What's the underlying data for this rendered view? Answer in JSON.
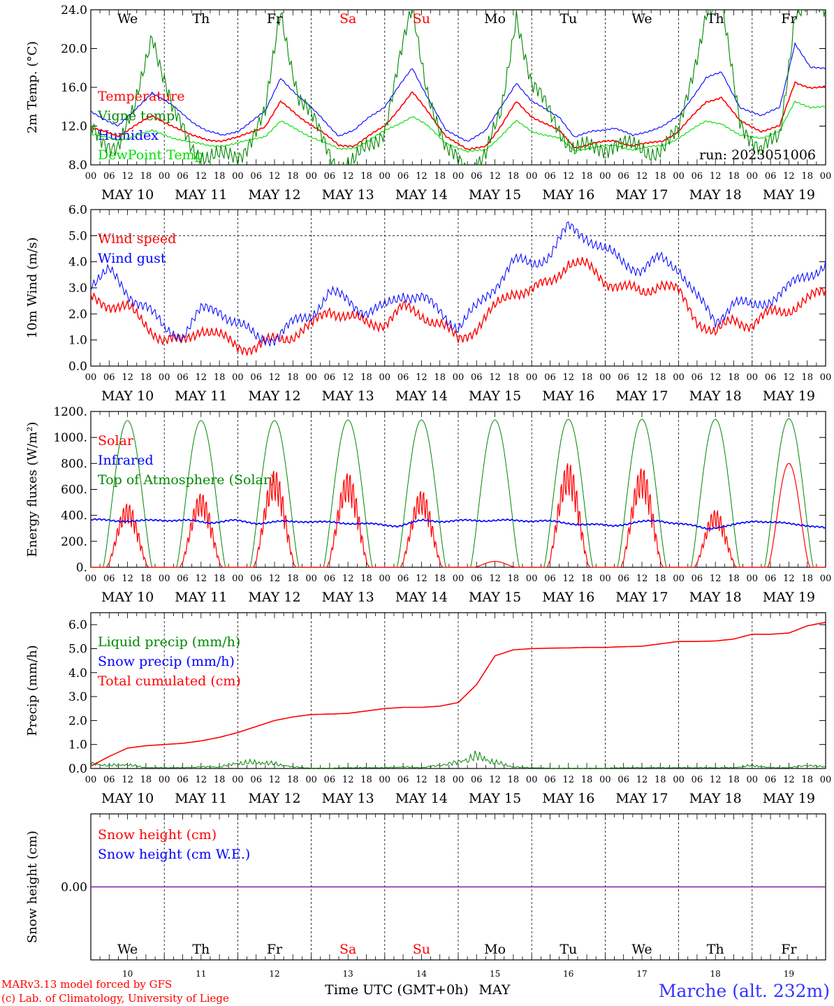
{
  "chart_data": [
    {
      "type": "line",
      "ylabel": "2m Temp. (°C)",
      "ylim": [
        8,
        24
      ],
      "yticks": [
        "8.0",
        "12.0",
        "16.0",
        "20.0",
        "24.0"
      ],
      "ytick_values": [
        8,
        12,
        16,
        20,
        24
      ],
      "legend": [
        "Temperature",
        "Vigne temp",
        "Humidex",
        "DewPoint Temp"
      ],
      "annotation": "run: 2023051006",
      "x": [
        0,
        9,
        14,
        20,
        27,
        33,
        38,
        43,
        48,
        57,
        62,
        68,
        75,
        81,
        86,
        91,
        96,
        105,
        110,
        116,
        123,
        129,
        134,
        139,
        144,
        153,
        158,
        164,
        171,
        177,
        182,
        187,
        192,
        201,
        206,
        212,
        219,
        225,
        230,
        235
      ],
      "series": [
        {
          "name": "Temperature",
          "color": "#ff0000",
          "values": [
            11.8,
            11.0,
            12.0,
            13.0,
            12.0,
            11.0,
            10.6,
            10.5,
            10.8,
            12.0,
            14.5,
            13.0,
            11.5,
            10.0,
            10.0,
            11.0,
            12.0,
            15.5,
            13.5,
            11.0,
            9.5,
            10.0,
            12.0,
            14.5,
            13.0,
            11.5,
            9.8,
            10.2,
            10.5,
            10.0,
            10.2,
            10.5,
            11.5,
            14.5,
            15.0,
            12.5,
            11.5,
            12.0,
            16.5,
            16.0
          ]
        },
        {
          "name": "Humidex",
          "color": "#0000ff",
          "values": [
            13.5,
            12.0,
            13.5,
            15.5,
            14.0,
            12.5,
            11.5,
            11.0,
            11.5,
            13.5,
            17.0,
            15.0,
            13.0,
            11.0,
            11.5,
            13.0,
            14.0,
            18.0,
            15.0,
            11.5,
            10.5,
            11.5,
            14.0,
            16.5,
            14.5,
            13.0,
            10.8,
            11.5,
            11.8,
            11.0,
            11.5,
            12.0,
            13.0,
            17.0,
            17.5,
            14.0,
            13.0,
            14.0,
            20.5,
            18.0
          ]
        },
        {
          "name": "DewPoint Temp",
          "color": "#00dd00",
          "values": [
            11.2,
            10.5,
            11.0,
            11.5,
            10.8,
            10.3,
            10.0,
            10.0,
            10.2,
            11.0,
            12.5,
            11.5,
            10.5,
            9.6,
            9.8,
            10.5,
            11.5,
            13.0,
            12.0,
            10.3,
            9.3,
            9.6,
            11.0,
            12.5,
            11.5,
            10.7,
            9.5,
            9.8,
            10.0,
            9.6,
            9.8,
            10.0,
            10.8,
            12.5,
            12.3,
            11.0,
            10.8,
            11.5,
            14.5,
            14.0
          ]
        },
        {
          "name": "Vigne temp",
          "color": "#008800",
          "values": [
            11.5,
            10.0,
            13.0,
            22.0,
            13.0,
            10.0,
            9.0,
            8.5,
            9.0,
            13.0,
            24.0,
            15.0,
            11.0,
            8.0,
            8.0,
            10.0,
            12.0,
            24.0,
            16.0,
            9.0,
            8.0,
            9.0,
            13.0,
            24.0,
            16.0,
            12.0,
            9.5,
            9.5,
            10.5,
            9.5,
            9.5,
            10.0,
            11.0,
            24.0,
            24.0,
            13.0,
            9.0,
            11.0,
            24.0,
            24.0
          ]
        }
      ]
    },
    {
      "type": "line",
      "ylabel": "10m Wind (m/s)",
      "ylim": [
        0,
        6
      ],
      "yticks": [
        "0.0",
        "1.0",
        "2.0",
        "3.0",
        "4.0",
        "5.0",
        "6.0"
      ],
      "ytick_values": [
        0,
        1,
        2,
        3,
        4,
        5,
        6
      ],
      "legend": [
        "Wind speed",
        "Wind gust"
      ],
      "x": [
        0,
        6,
        12,
        18,
        24,
        30,
        36,
        42,
        48,
        54,
        60,
        66,
        72,
        78,
        84,
        90,
        96,
        102,
        108,
        114,
        120,
        126,
        132,
        138,
        144,
        150,
        156,
        162,
        168,
        174,
        180,
        186,
        192,
        198,
        204,
        210,
        216,
        222,
        228,
        234,
        240
      ],
      "series": [
        {
          "name": "Wind speed",
          "color": "#ff0000",
          "values": [
            2.6,
            2.4,
            2.2,
            1.6,
            1.0,
            0.9,
            1.5,
            1.1,
            0.8,
            0.7,
            1.0,
            1.2,
            1.5,
            2.2,
            1.9,
            1.6,
            1.7,
            2.2,
            2.0,
            1.6,
            1.0,
            1.5,
            2.2,
            2.9,
            2.9,
            3.2,
            4.0,
            3.8,
            3.3,
            3.0,
            2.8,
            3.2,
            2.8,
            1.8,
            1.2,
            1.8,
            1.6,
            2.0,
            2.2,
            2.5,
            2.9
          ]
        },
        {
          "name": "Wind gust",
          "color": "#0000ff",
          "values": [
            3.2,
            3.6,
            2.8,
            2.3,
            1.4,
            1.2,
            2.1,
            2.2,
            1.6,
            1.1,
            1.1,
            1.6,
            2.0,
            2.8,
            2.5,
            2.1,
            2.2,
            2.8,
            2.6,
            2.1,
            1.5,
            2.2,
            3.1,
            4.0,
            3.9,
            4.3,
            5.3,
            5.0,
            4.4,
            4.0,
            3.7,
            4.1,
            3.8,
            2.6,
            1.7,
            2.5,
            2.2,
            2.6,
            3.0,
            3.5,
            3.9
          ]
        }
      ]
    },
    {
      "type": "line",
      "ylabel": "Energy fluxes (W/m²)",
      "ylim": [
        0,
        1200
      ],
      "yticks": [
        "0.",
        "200.",
        "400.",
        "600.",
        "800.",
        "1000.",
        "1200."
      ],
      "ytick_values": [
        0,
        200,
        400,
        600,
        800,
        1000,
        1200
      ],
      "legend": [
        "Solar",
        "Infrared",
        "Top of Atmosphere (Solar)"
      ],
      "solar_peaks": [
        500,
        580,
        760,
        740,
        600,
        45,
        820,
        780,
        450,
        800
      ],
      "series": [
        {
          "name": "Top of Atmosphere (Solar)",
          "color": "#008800",
          "values_daily_peak": [
            1130,
            1130,
            1130,
            1135,
            1135,
            1135,
            1140,
            1140,
            1140,
            1145
          ]
        },
        {
          "name": "Solar",
          "color": "#ff0000",
          "values_daily_peak": [
            500,
            580,
            760,
            740,
            600,
            45,
            820,
            780,
            450,
            800
          ]
        },
        {
          "name": "Infrared",
          "color": "#0000ff",
          "values": [
            365,
            360,
            355,
            365,
            360,
            345,
            360,
            340,
            350,
            355,
            345,
            340,
            330,
            320,
            360,
            355,
            360,
            362,
            358,
            360,
            340,
            330,
            320,
            345,
            360,
            330,
            300,
            320,
            360,
            340,
            330,
            300
          ]
        }
      ]
    },
    {
      "type": "line",
      "ylabel": "Precip (mm/h)",
      "ylim": [
        0,
        6.5
      ],
      "yticks": [
        "0.0",
        "1.0",
        "2.0",
        "3.0",
        "4.0",
        "5.0",
        "6.0"
      ],
      "ytick_values": [
        0,
        1,
        2,
        3,
        4,
        5,
        6
      ],
      "legend": [
        "Liquid precip (mm/h)",
        "Snow precip (mm/h)",
        "Total cumulated (cm)"
      ],
      "x": [
        0,
        6,
        12,
        18,
        24,
        30,
        36,
        42,
        48,
        54,
        60,
        66,
        72,
        78,
        84,
        90,
        96,
        102,
        108,
        114,
        120,
        126,
        132,
        138,
        144,
        150,
        156,
        162,
        168,
        174,
        180,
        186,
        192,
        198,
        204,
        210,
        216,
        222,
        228,
        234,
        240
      ],
      "series": [
        {
          "name": "Total cumulated (cm)",
          "color": "#ff0000",
          "values": [
            0.1,
            0.5,
            0.85,
            0.95,
            1.0,
            1.05,
            1.15,
            1.3,
            1.5,
            1.75,
            2.0,
            2.15,
            2.25,
            2.27,
            2.3,
            2.4,
            2.5,
            2.55,
            2.55,
            2.6,
            2.75,
            3.5,
            4.7,
            4.95,
            5.0,
            5.02,
            5.03,
            5.05,
            5.05,
            5.08,
            5.1,
            5.2,
            5.3,
            5.3,
            5.32,
            5.4,
            5.6,
            5.6,
            5.65,
            5.95,
            6.1
          ]
        },
        {
          "name": "Liquid precip (mm/h)",
          "color": "#008800",
          "values": [
            0.3,
            0.2,
            0.25,
            0.05,
            0.05,
            0.05,
            0.1,
            0.1,
            0.35,
            0.4,
            0.3,
            0.1,
            0.02,
            0.02,
            0.05,
            0.05,
            0.05,
            0.1,
            0.05,
            0.2,
            0.4,
            0.8,
            0.4,
            0.1,
            0.05,
            0.02,
            0.02,
            0.02,
            0.02,
            0.05,
            0.05,
            0.05,
            0.05,
            0.05,
            0.05,
            0.05,
            0.2,
            0.05,
            0.05,
            0.2,
            0.1
          ]
        }
      ]
    },
    {
      "type": "line",
      "ylabel": "Snow height (cm)",
      "ylim": [
        -1,
        1
      ],
      "yticks": [
        "0.00"
      ],
      "ytick_values": [
        0
      ],
      "legend": [
        "Snow height (cm)",
        "Snow height (cm W.E.)"
      ],
      "series": [
        {
          "name": "Snow height (cm)",
          "color": "#ff0000",
          "values": [
            0,
            0
          ]
        },
        {
          "name": "Snow height (cm W.E.)",
          "color": "#0000ff",
          "values": [
            0,
            0
          ]
        }
      ]
    }
  ],
  "days": [
    {
      "abbr": "We",
      "date": "MAY 10",
      "num": "10",
      "weekend": false
    },
    {
      "abbr": "Th",
      "date": "MAY 11",
      "num": "11",
      "weekend": false
    },
    {
      "abbr": "Fr",
      "date": "MAY 12",
      "num": "12",
      "weekend": false
    },
    {
      "abbr": "Sa",
      "date": "MAY 13",
      "num": "13",
      "weekend": true
    },
    {
      "abbr": "Su",
      "date": "MAY 14",
      "num": "14",
      "weekend": true
    },
    {
      "abbr": "Mo",
      "date": "MAY 15",
      "num": "15",
      "weekend": false
    },
    {
      "abbr": "Tu",
      "date": "MAY 16",
      "num": "16",
      "weekend": false
    },
    {
      "abbr": "We",
      "date": "MAY 17",
      "num": "17",
      "weekend": false
    },
    {
      "abbr": "Th",
      "date": "MAY 18",
      "num": "18",
      "weekend": false
    },
    {
      "abbr": "Fr",
      "date": "MAY 19",
      "num": "19",
      "weekend": false
    }
  ],
  "hour_labels": [
    "00",
    "06",
    "12",
    "18"
  ],
  "final_hour_label": "00",
  "colors": {
    "weekday": "#000000",
    "weekend": "#ff0000",
    "station": "#3333ff",
    "credit": "#ff0000"
  },
  "footer": {
    "xlabel": "Time UTC (GMT+0h)",
    "month": "MAY",
    "credit_line1": "MARv3.13 model forced by GFS",
    "credit_line2": "(c) Lab. of Climatology, University of Liege",
    "station": "Marche (alt. 232m)"
  }
}
